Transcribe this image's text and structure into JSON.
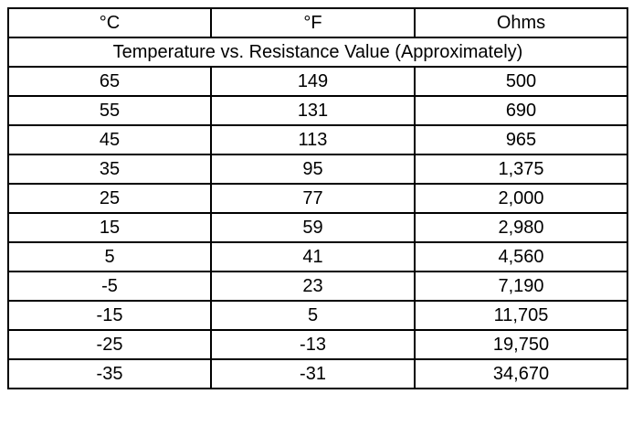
{
  "table": {
    "header": [
      "°C",
      "°F",
      "Ohms"
    ],
    "caption": "Temperature vs. Resistance Value (Approximately)",
    "rows": [
      [
        "65",
        "149",
        "500"
      ],
      [
        "55",
        "131",
        "690"
      ],
      [
        "45",
        "113",
        "965"
      ],
      [
        "35",
        "95",
        "1,375"
      ],
      [
        "25",
        "77",
        "2,000"
      ],
      [
        "15",
        "59",
        "2,980"
      ],
      [
        "5",
        "41",
        "4,560"
      ],
      [
        "-5",
        "23",
        "7,190"
      ],
      [
        "-15",
        "5",
        "11,705"
      ],
      [
        "-25",
        "-13",
        "19,750"
      ],
      [
        "-35",
        "-31",
        "34,670"
      ]
    ]
  }
}
